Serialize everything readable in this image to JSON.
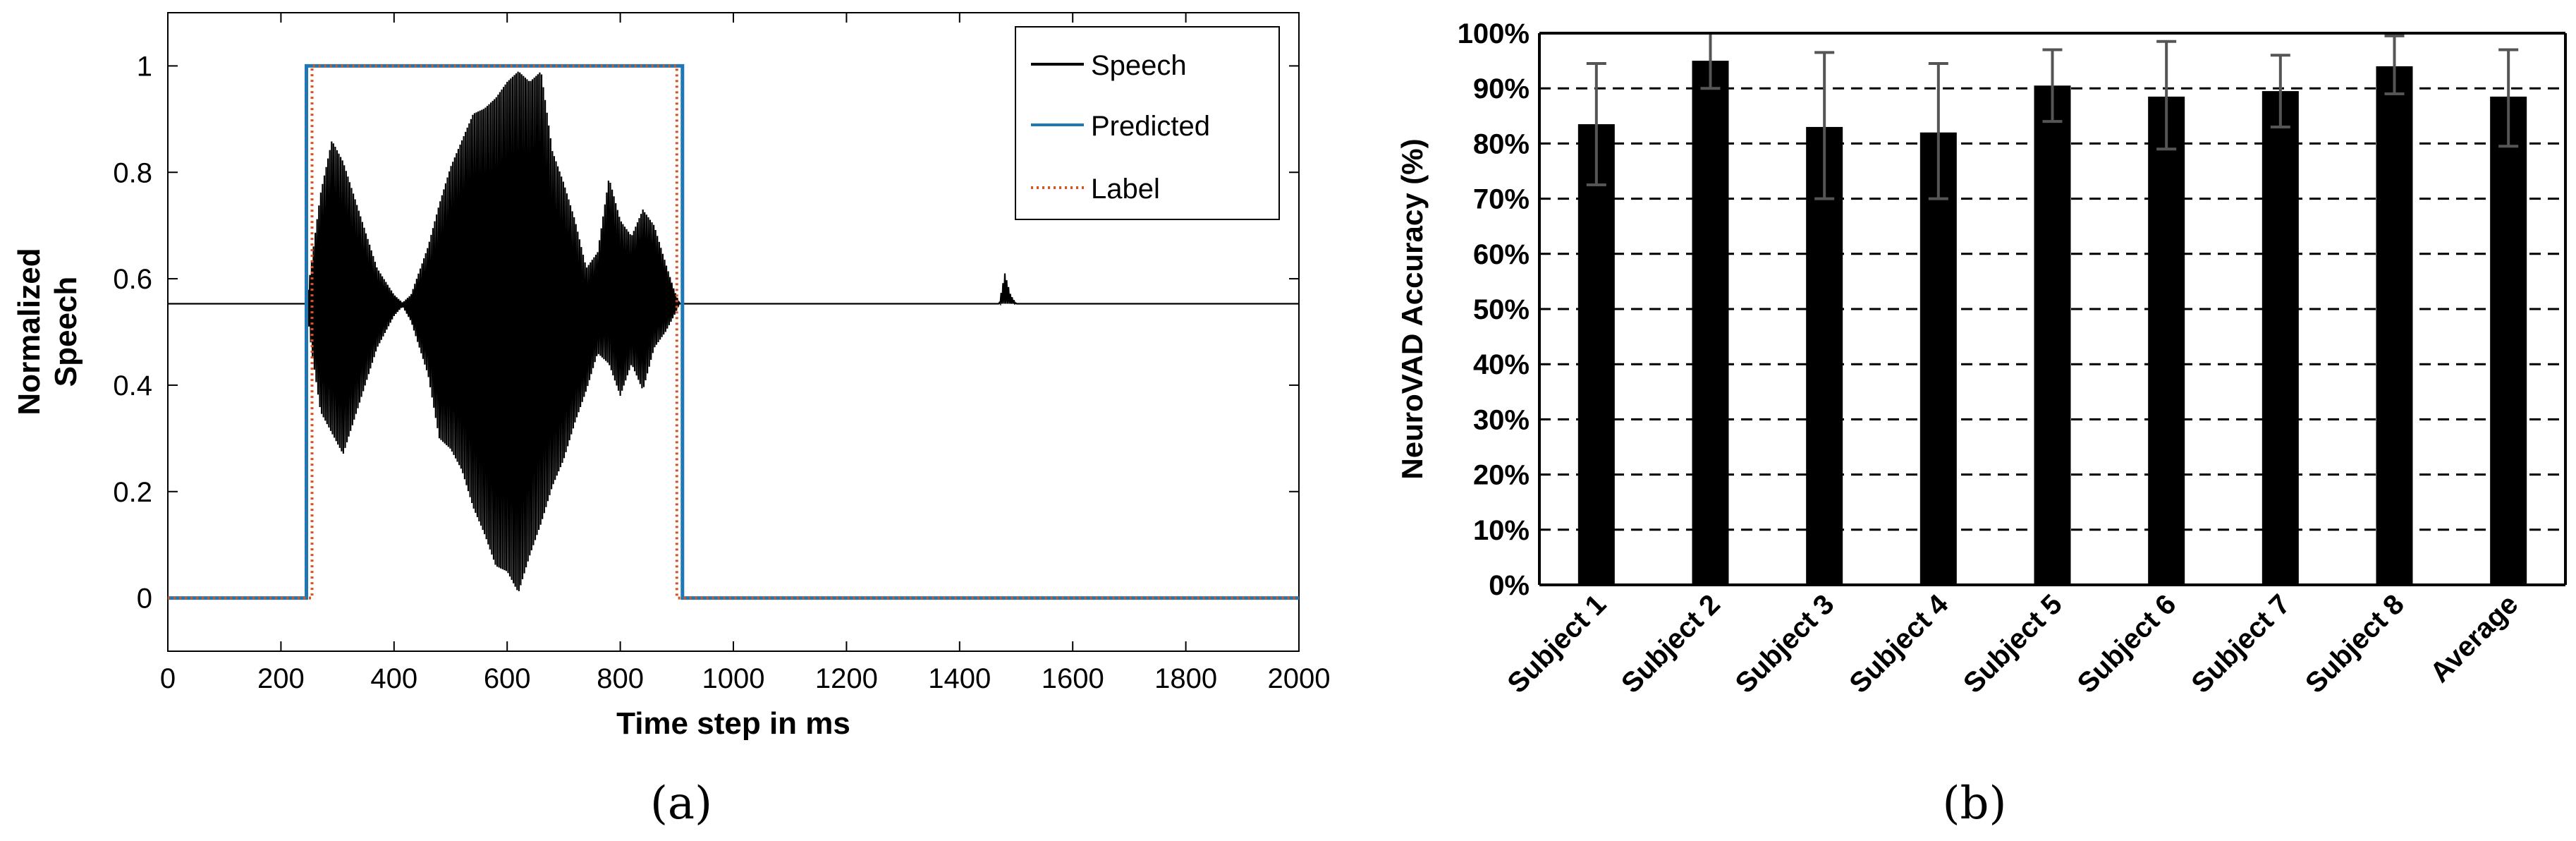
{
  "chart_data": [
    {
      "type": "line",
      "panel_label": "(a)",
      "xlabel": "Time step in ms",
      "ylabel_lines": [
        "Normalized",
        "Speech"
      ],
      "xlim": [
        0,
        2000
      ],
      "ylim": [
        -0.1,
        1.1
      ],
      "xticks": [
        0,
        200,
        400,
        600,
        800,
        1000,
        1200,
        1400,
        1600,
        1800,
        2000
      ],
      "yticks": [
        0,
        0.2,
        0.4,
        0.6,
        0.8,
        1
      ],
      "ytick_labels": [
        "0",
        "0.2",
        "0.4",
        "0.6",
        "0.8",
        "1"
      ],
      "grid": false,
      "legend_position": "top-right",
      "series": [
        {
          "name": "Speech",
          "color": "#000000",
          "style": "solid",
          "baseline": 0.553,
          "x": [
            0,
            245,
            255,
            270,
            290,
            310,
            340,
            370,
            400,
            415,
            430,
            460,
            480,
            500,
            520,
            540,
            560,
            580,
            600,
            620,
            640,
            660,
            680,
            700,
            720,
            740,
            760,
            780,
            800,
            820,
            840,
            860,
            880,
            895,
            905,
            1470,
            1480,
            1490,
            1500,
            2000
          ],
          "envelope_upper": [
            0.553,
            0.553,
            0.64,
            0.76,
            0.86,
            0.82,
            0.72,
            0.62,
            0.57,
            0.555,
            0.57,
            0.66,
            0.74,
            0.81,
            0.86,
            0.91,
            0.92,
            0.94,
            0.97,
            0.99,
            0.97,
            0.99,
            0.84,
            0.78,
            0.71,
            0.62,
            0.65,
            0.79,
            0.71,
            0.68,
            0.73,
            0.7,
            0.63,
            0.58,
            0.553,
            0.553,
            0.61,
            0.57,
            0.553,
            0.553
          ],
          "envelope_lower": [
            0.553,
            0.553,
            0.46,
            0.35,
            0.31,
            0.27,
            0.37,
            0.47,
            0.53,
            0.548,
            0.52,
            0.42,
            0.3,
            0.28,
            0.24,
            0.17,
            0.12,
            0.06,
            0.05,
            0.01,
            0.08,
            0.14,
            0.21,
            0.26,
            0.33,
            0.39,
            0.46,
            0.44,
            0.38,
            0.44,
            0.39,
            0.47,
            0.5,
            0.53,
            0.553,
            0.553,
            0.553,
            0.553,
            0.553,
            0.553
          ]
        },
        {
          "name": "Predicted",
          "color": "#1f77b4",
          "style": "solid",
          "x": [
            0,
            245,
            245,
            910,
            910,
            2000
          ],
          "y": [
            0,
            0,
            1,
            1,
            0,
            0
          ]
        },
        {
          "name": "Label",
          "color": "#d9541e",
          "style": "dotted",
          "x": [
            0,
            255,
            255,
            900,
            900,
            2000
          ],
          "y": [
            0,
            0,
            1,
            1,
            0,
            0
          ]
        }
      ]
    },
    {
      "type": "bar",
      "panel_label": "(b)",
      "ylabel": "NeuroVAD Accuracy (%)",
      "categories": [
        "Subject 1",
        "Subject 2",
        "Subject 3",
        "Subject 4",
        "Subject 5",
        "Subject 6",
        "Subject 7",
        "Subject 8",
        "Average"
      ],
      "values": [
        83.5,
        95,
        83,
        82,
        90.5,
        88.5,
        89.5,
        94,
        88.5
      ],
      "error_low": [
        72.5,
        90,
        70,
        70,
        84,
        79,
        83,
        89,
        79.5
      ],
      "error_high": [
        94.5,
        100,
        96.5,
        94.5,
        97,
        98.5,
        96,
        99.5,
        97
      ],
      "ylim": [
        0,
        100
      ],
      "yticks": [
        0,
        10,
        20,
        30,
        40,
        50,
        60,
        70,
        80,
        90,
        100
      ],
      "ytick_labels": [
        "0%",
        "10%",
        "20%",
        "30%",
        "40%",
        "50%",
        "60%",
        "70%",
        "80%",
        "90%",
        "100%"
      ],
      "grid": "dashed horizontal",
      "bar_color": "#000000",
      "error_color": "#555555"
    }
  ]
}
